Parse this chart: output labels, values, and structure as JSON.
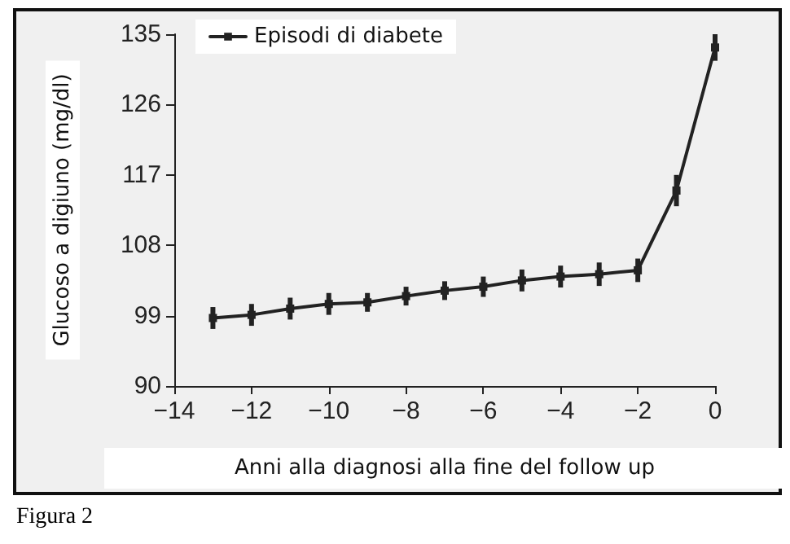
{
  "chart_data": {
    "type": "line",
    "xlabel": "Anni alla diagnosi alla fine del follow up",
    "ylabel": "Glucoso a digiuno (mg/dl)",
    "annotations": [
      "Figura 2"
    ],
    "x": [
      -13,
      -12,
      -11,
      -10,
      -9,
      -8,
      -7,
      -6,
      -5,
      -4,
      -3,
      -2,
      -1,
      0
    ],
    "series": [
      {
        "name": "Episodi di diabete",
        "color": "#222222",
        "values": [
          98.7,
          99.1,
          99.9,
          100.5,
          100.7,
          101.5,
          102.2,
          102.7,
          103.5,
          104.0,
          104.3,
          104.8,
          115.0,
          133.3
        ],
        "errors": [
          1.4,
          1.4,
          1.4,
          1.4,
          1.2,
          1.2,
          1.2,
          1.3,
          1.4,
          1.4,
          1.5,
          1.5,
          2.0,
          1.7
        ]
      }
    ],
    "xlim": [
      -14,
      0
    ],
    "xticks": [
      {
        "value": -14,
        "label": "−14"
      },
      {
        "value": -12,
        "label": "−12"
      },
      {
        "value": -10,
        "label": "−10"
      },
      {
        "value": -8,
        "label": "−8"
      },
      {
        "value": -6,
        "label": "−6"
      },
      {
        "value": -4,
        "label": "−4"
      },
      {
        "value": -2,
        "label": "−2"
      },
      0
    ],
    "ylim": [
      90,
      135
    ],
    "yticks": [
      90,
      99,
      108,
      117,
      126,
      135
    ],
    "grid": false,
    "legend": "top left",
    "marker": "square",
    "line_style": "solid"
  }
}
